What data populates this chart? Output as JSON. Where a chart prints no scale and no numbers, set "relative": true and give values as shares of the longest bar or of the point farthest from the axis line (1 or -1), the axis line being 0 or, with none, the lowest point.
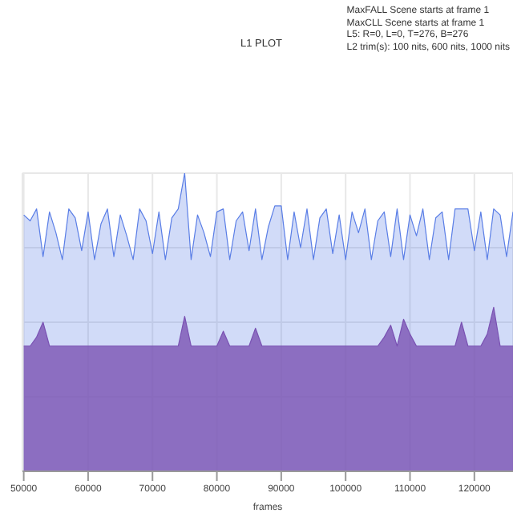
{
  "chart_data": {
    "type": "area",
    "title": "L1 PLOT",
    "xlabel": "frames",
    "annotations": [
      "MaxFALL Scene starts at frame 1",
      "MaxCLL Scene starts at frame 1",
      "L5: R=0, L=0, T=276, B=276",
      "L2 trim(s): 100 nits, 600 nits, 1000 nits"
    ],
    "relative": true,
    "grid": true,
    "xlim": [
      49800,
      126000
    ],
    "xticks": [
      50000,
      60000,
      70000,
      80000,
      90000,
      100000,
      110000,
      120000
    ],
    "x": [
      50000,
      51000,
      52000,
      53000,
      54000,
      55000,
      56000,
      57000,
      58000,
      59000,
      60000,
      61000,
      62000,
      63000,
      64000,
      65000,
      66000,
      67000,
      68000,
      69000,
      70000,
      71000,
      72000,
      73000,
      74000,
      75000,
      76000,
      77000,
      78000,
      79000,
      80000,
      81000,
      82000,
      83000,
      84000,
      85000,
      86000,
      87000,
      88000,
      89000,
      90000,
      91000,
      92000,
      93000,
      94000,
      95000,
      96000,
      97000,
      98000,
      99000,
      100000,
      101000,
      102000,
      103000,
      104000,
      105000,
      106000,
      107000,
      108000,
      109000,
      110000,
      111000,
      112000,
      113000,
      114000,
      115000,
      116000,
      117000,
      118000,
      119000,
      120000,
      121000,
      122000,
      123000,
      124000,
      125000,
      126000
    ],
    "series": [
      {
        "color": "#5a7ee6",
        "values": [
          0.86,
          0.84,
          0.88,
          0.72,
          0.87,
          0.8,
          0.71,
          0.88,
          0.85,
          0.74,
          0.87,
          0.71,
          0.83,
          0.88,
          0.72,
          0.86,
          0.79,
          0.71,
          0.88,
          0.84,
          0.73,
          0.87,
          0.71,
          0.85,
          0.88,
          1.0,
          0.71,
          0.86,
          0.8,
          0.72,
          0.87,
          0.88,
          0.71,
          0.84,
          0.87,
          0.74,
          0.88,
          0.71,
          0.82,
          0.89,
          0.89,
          0.71,
          0.87,
          0.75,
          0.88,
          0.71,
          0.85,
          0.88,
          0.73,
          0.86,
          0.71,
          0.87,
          0.8,
          0.88,
          0.71,
          0.84,
          0.87,
          0.72,
          0.88,
          0.71,
          0.86,
          0.79,
          0.88,
          0.71,
          0.85,
          0.87,
          0.71,
          0.88,
          0.88,
          0.88,
          0.74,
          0.87,
          0.71,
          0.88,
          0.86,
          0.72,
          0.87
        ]
      },
      {
        "color": "#7a52b3",
        "values": [
          0.42,
          0.42,
          0.45,
          0.5,
          0.42,
          0.42,
          0.42,
          0.42,
          0.42,
          0.42,
          0.42,
          0.42,
          0.42,
          0.42,
          0.42,
          0.42,
          0.42,
          0.42,
          0.42,
          0.42,
          0.42,
          0.42,
          0.42,
          0.42,
          0.42,
          0.52,
          0.42,
          0.42,
          0.42,
          0.42,
          0.42,
          0.47,
          0.42,
          0.42,
          0.42,
          0.42,
          0.48,
          0.42,
          0.42,
          0.42,
          0.42,
          0.42,
          0.42,
          0.42,
          0.42,
          0.42,
          0.42,
          0.42,
          0.42,
          0.42,
          0.42,
          0.42,
          0.42,
          0.42,
          0.42,
          0.42,
          0.45,
          0.49,
          0.42,
          0.51,
          0.46,
          0.42,
          0.42,
          0.42,
          0.42,
          0.42,
          0.42,
          0.42,
          0.5,
          0.42,
          0.42,
          0.42,
          0.46,
          0.55,
          0.42,
          0.42,
          0.42
        ]
      }
    ]
  }
}
